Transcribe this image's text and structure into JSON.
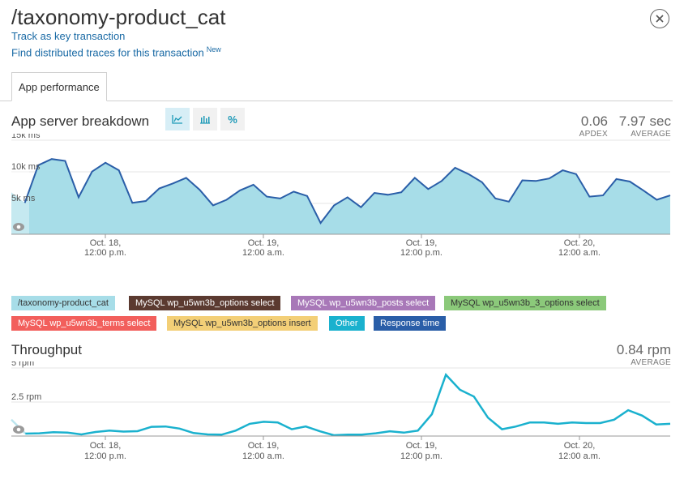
{
  "header": {
    "title": "/taxonomy-product_cat",
    "track_link": "Track as key transaction",
    "traces_link": "Find distributed traces for this transaction",
    "traces_badge": "New"
  },
  "tabs": [
    {
      "label": "App performance",
      "active": true
    }
  ],
  "app_breakdown": {
    "title": "App server breakdown",
    "view_buttons": [
      {
        "icon": "area-chart-icon",
        "active": true
      },
      {
        "icon": "bar-chart-icon",
        "active": false
      },
      {
        "icon": "percent-icon",
        "label": "%",
        "active": false
      }
    ],
    "apdex_value": "0.06",
    "apdex_label": "APDEX",
    "avg_value": "7.97 sec",
    "avg_label": "AVERAGE"
  },
  "throughput": {
    "title": "Throughput",
    "avg_value": "0.84 rpm",
    "avg_label": "AVERAGE"
  },
  "x_ticks": [
    {
      "line1": "Oct. 18,",
      "line2": "12:00 p.m."
    },
    {
      "line1": "Oct. 19,",
      "line2": "12:00 a.m."
    },
    {
      "line1": "Oct. 19,",
      "line2": "12:00 p.m."
    },
    {
      "line1": "Oct. 20,",
      "line2": "12:00 a.m."
    }
  ],
  "legend": [
    {
      "label": "/taxonomy-product_cat",
      "bg": "#a7dde8",
      "fg": "#333333"
    },
    {
      "label": "MySQL wp_u5wn3b_options select",
      "bg": "#5b3a30",
      "fg": "#ffffff"
    },
    {
      "label": "MySQL wp_u5wn3b_posts select",
      "bg": "#a878b8",
      "fg": "#ffffff"
    },
    {
      "label": "MySQL wp_u5wn3b_3_options select",
      "bg": "#8bc97a",
      "fg": "#333333"
    },
    {
      "label": "MySQL wp_u5wn3b_terms select",
      "bg": "#f25f5c",
      "fg": "#ffffff"
    },
    {
      "label": "MySQL wp_u5wn3b_options insert",
      "bg": "#f3cf77",
      "fg": "#333333"
    },
    {
      "label": "Other",
      "bg": "#1ab1ce",
      "fg": "#ffffff"
    },
    {
      "label": "Response time",
      "bg": "#2a5ea8",
      "fg": "#ffffff"
    }
  ],
  "chart_data": [
    {
      "type": "area",
      "title": "App server breakdown",
      "unit": "ms",
      "y_ticks": [
        "15k ms",
        "10k ms",
        "5k ms"
      ],
      "ylim": [
        0,
        15000
      ],
      "x_ticks": [
        "Oct. 18, 12:00 p.m.",
        "Oct. 19, 12:00 a.m.",
        "Oct. 19, 12:00 p.m.",
        "Oct. 20, 12:00 a.m."
      ],
      "series": [
        {
          "name": "/taxonomy-product_cat",
          "color": "#a7dde8",
          "values": [
            6700,
            5000,
            11000,
            12000,
            11700,
            5900,
            10000,
            11400,
            10200,
            5000,
            5300,
            7300,
            8100,
            9000,
            7100,
            4600,
            5500,
            7000,
            7900,
            6000,
            5700,
            6800,
            6100,
            1800,
            4600,
            5900,
            4300,
            6600,
            6300,
            6700,
            9000,
            7200,
            8500,
            10600,
            9600,
            8300,
            5700,
            5200,
            8600,
            8500,
            8900,
            10200,
            9600,
            6000,
            6200,
            8800,
            8400,
            7000,
            5500,
            6200
          ]
        },
        {
          "name": "Response time",
          "color": "#2a5ea8",
          "values": [
            6700,
            5000,
            11000,
            12000,
            11700,
            5900,
            10000,
            11400,
            10200,
            5000,
            5300,
            7300,
            8100,
            9000,
            7100,
            4600,
            5500,
            7000,
            7900,
            6000,
            5700,
            6800,
            6100,
            1800,
            4600,
            5900,
            4300,
            6600,
            6300,
            6700,
            9000,
            7200,
            8500,
            10600,
            9600,
            8300,
            5700,
            5200,
            8600,
            8500,
            8900,
            10200,
            9600,
            6000,
            6200,
            8800,
            8400,
            7000,
            5500,
            6200
          ]
        }
      ]
    },
    {
      "type": "line",
      "title": "Throughput",
      "unit": "rpm",
      "y_ticks": [
        "5 rpm",
        "2.5 rpm"
      ],
      "ylim": [
        0,
        5
      ],
      "x_ticks": [
        "Oct. 18, 12:00 p.m.",
        "Oct. 19, 12:00 a.m.",
        "Oct. 19, 12:00 p.m.",
        "Oct. 20, 12:00 a.m."
      ],
      "series": [
        {
          "name": "Throughput",
          "color": "#1ab1ce",
          "values": [
            1.2,
            0.18,
            0.2,
            0.28,
            0.25,
            0.12,
            0.3,
            0.4,
            0.33,
            0.36,
            0.68,
            0.7,
            0.55,
            0.22,
            0.12,
            0.1,
            0.4,
            0.9,
            1.05,
            1.0,
            0.5,
            0.7,
            0.35,
            0.06,
            0.1,
            0.1,
            0.2,
            0.35,
            0.25,
            0.4,
            1.6,
            4.5,
            3.4,
            2.9,
            1.35,
            0.5,
            0.7,
            1.0,
            1.0,
            0.9,
            1.0,
            0.95,
            0.95,
            1.2,
            1.9,
            1.5,
            0.85,
            0.9
          ]
        }
      ]
    }
  ]
}
